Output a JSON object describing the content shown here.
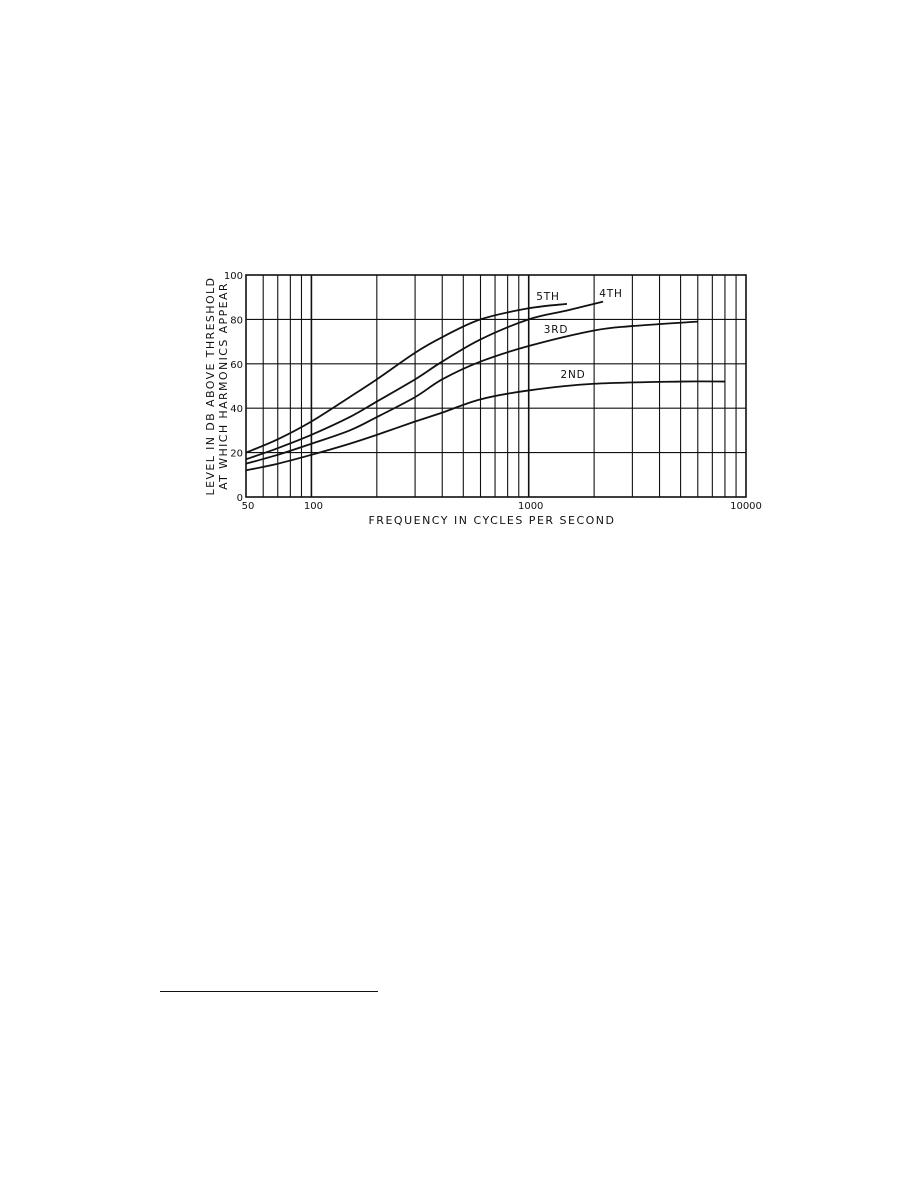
{
  "chart_data": {
    "type": "line",
    "title": "",
    "xlabel": "FREQUENCY IN CYCLES PER SECOND",
    "ylabel": [
      "LEVEL IN DB ABOVE THRESHOLD",
      "AT WHICH HARMONICS APPEAR"
    ],
    "x_scale": "log",
    "xlim": [
      50,
      10000
    ],
    "ylim": [
      0,
      100
    ],
    "x_ticks": [
      50,
      100,
      1000,
      10000
    ],
    "x_tick_labels": [
      "50",
      "100",
      "1000",
      "10000"
    ],
    "y_ticks": [
      0,
      20,
      40,
      60,
      80,
      100
    ],
    "y_tick_labels": [
      "0",
      "20",
      "40",
      "60",
      "80",
      "100"
    ],
    "grid": true,
    "line_color": "#111111",
    "series": [
      {
        "name": "5TH",
        "x": [
          50,
          70,
          100,
          150,
          200,
          300,
          400,
          600,
          1000,
          1500
        ],
        "values": [
          20,
          26,
          34,
          45,
          53,
          65,
          72,
          80,
          85,
          87
        ]
      },
      {
        "name": "4TH",
        "x": [
          50,
          70,
          100,
          150,
          200,
          300,
          400,
          600,
          1000,
          1500,
          2200
        ],
        "values": [
          17,
          22,
          28,
          36,
          43,
          53,
          61,
          71,
          80,
          84,
          88
        ]
      },
      {
        "name": "3RD",
        "x": [
          50,
          70,
          100,
          150,
          200,
          300,
          400,
          600,
          1000,
          2000,
          3000,
          6000
        ],
        "values": [
          15,
          19,
          24,
          30,
          36,
          45,
          53,
          61,
          68,
          75,
          77,
          79
        ]
      },
      {
        "name": "2ND",
        "x": [
          50,
          70,
          100,
          150,
          200,
          300,
          400,
          600,
          1000,
          2000,
          5000,
          8000
        ],
        "values": [
          12,
          15,
          19,
          24,
          28,
          34,
          38,
          44,
          48,
          51,
          52,
          52
        ]
      }
    ]
  }
}
